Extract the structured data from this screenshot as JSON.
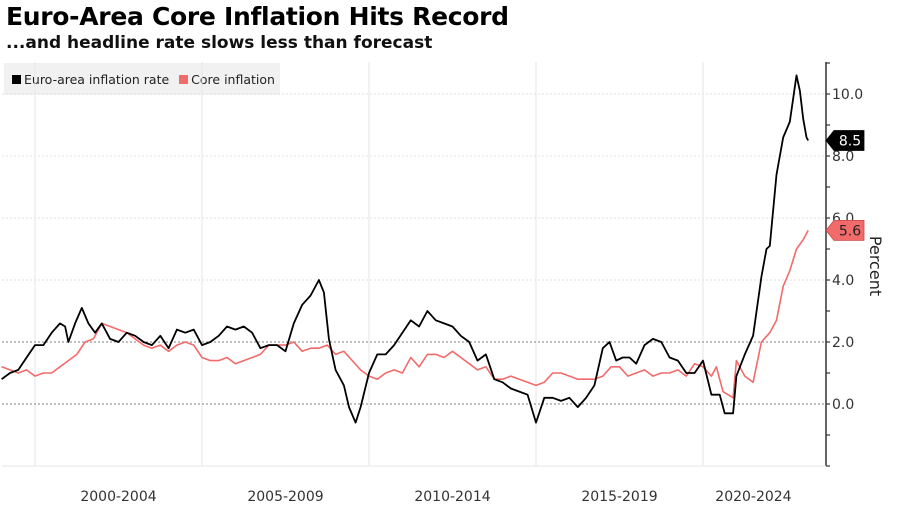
{
  "header": {
    "title": "Euro-Area Core Inflation Hits Record",
    "subtitle": "...and headline rate slows less than forecast"
  },
  "chart_data": {
    "type": "line",
    "title": "Euro-Area Core Inflation Hits Record",
    "subtitle": "...and headline rate slows less than forecast",
    "xlabel": "",
    "ylabel": "Percent",
    "ylim": [
      -2,
      11
    ],
    "yticks": [
      0.0,
      2.0,
      4.0,
      6.0,
      8.0,
      10.0
    ],
    "ytick_labels": [
      "0.0",
      "2.0",
      "4.0",
      "6.0",
      "8.0",
      "10.0"
    ],
    "xlim": [
      1999.0,
      2024.0
    ],
    "x_category_labels": [
      {
        "label": "2000-2004",
        "from": 2000,
        "to": 2005
      },
      {
        "label": "2005-2009",
        "from": 2005,
        "to": 2010
      },
      {
        "label": "2010-2014",
        "from": 2010,
        "to": 2015
      },
      {
        "label": "2015-2019",
        "from": 2015,
        "to": 2020
      },
      {
        "label": "2020-2024",
        "from": 2020,
        "to": 2024
      }
    ],
    "grid": true,
    "reference_lines": [
      0.0,
      2.0
    ],
    "legend_position": "top-left",
    "legend": [
      "Euro-area inflation rate",
      "Core inflation"
    ],
    "series": [
      {
        "name": "Euro-area inflation rate",
        "color": "#000000",
        "end_label": "8.5",
        "points": [
          [
            1999.0,
            0.8
          ],
          [
            1999.25,
            1.0
          ],
          [
            1999.5,
            1.1
          ],
          [
            1999.75,
            1.5
          ],
          [
            2000.0,
            1.9
          ],
          [
            2000.25,
            1.9
          ],
          [
            2000.5,
            2.3
          ],
          [
            2000.75,
            2.6
          ],
          [
            2000.9,
            2.5
          ],
          [
            2001.0,
            2.0
          ],
          [
            2001.2,
            2.6
          ],
          [
            2001.4,
            3.1
          ],
          [
            2001.6,
            2.6
          ],
          [
            2001.8,
            2.3
          ],
          [
            2002.0,
            2.6
          ],
          [
            2002.25,
            2.1
          ],
          [
            2002.5,
            2.0
          ],
          [
            2002.75,
            2.3
          ],
          [
            2003.0,
            2.2
          ],
          [
            2003.25,
            2.0
          ],
          [
            2003.5,
            1.9
          ],
          [
            2003.75,
            2.2
          ],
          [
            2004.0,
            1.8
          ],
          [
            2004.25,
            2.4
          ],
          [
            2004.5,
            2.3
          ],
          [
            2004.75,
            2.4
          ],
          [
            2005.0,
            1.9
          ],
          [
            2005.25,
            2.0
          ],
          [
            2005.5,
            2.2
          ],
          [
            2005.75,
            2.5
          ],
          [
            2006.0,
            2.4
          ],
          [
            2006.25,
            2.5
          ],
          [
            2006.5,
            2.3
          ],
          [
            2006.75,
            1.8
          ],
          [
            2007.0,
            1.9
          ],
          [
            2007.25,
            1.9
          ],
          [
            2007.5,
            1.7
          ],
          [
            2007.75,
            2.6
          ],
          [
            2008.0,
            3.2
          ],
          [
            2008.25,
            3.5
          ],
          [
            2008.5,
            4.0
          ],
          [
            2008.65,
            3.6
          ],
          [
            2008.8,
            2.1
          ],
          [
            2009.0,
            1.1
          ],
          [
            2009.25,
            0.6
          ],
          [
            2009.4,
            -0.1
          ],
          [
            2009.6,
            -0.6
          ],
          [
            2009.75,
            -0.1
          ],
          [
            2010.0,
            1.0
          ],
          [
            2010.25,
            1.6
          ],
          [
            2010.5,
            1.6
          ],
          [
            2010.75,
            1.9
          ],
          [
            2011.0,
            2.3
          ],
          [
            2011.25,
            2.7
          ],
          [
            2011.5,
            2.5
          ],
          [
            2011.75,
            3.0
          ],
          [
            2012.0,
            2.7
          ],
          [
            2012.25,
            2.6
          ],
          [
            2012.5,
            2.5
          ],
          [
            2012.75,
            2.2
          ],
          [
            2013.0,
            2.0
          ],
          [
            2013.25,
            1.4
          ],
          [
            2013.5,
            1.6
          ],
          [
            2013.75,
            0.8
          ],
          [
            2014.0,
            0.7
          ],
          [
            2014.25,
            0.5
          ],
          [
            2014.5,
            0.4
          ],
          [
            2014.75,
            0.3
          ],
          [
            2015.0,
            -0.6
          ],
          [
            2015.25,
            0.2
          ],
          [
            2015.5,
            0.2
          ],
          [
            2015.75,
            0.1
          ],
          [
            2016.0,
            0.2
          ],
          [
            2016.25,
            -0.1
          ],
          [
            2016.5,
            0.2
          ],
          [
            2016.75,
            0.6
          ],
          [
            2017.0,
            1.8
          ],
          [
            2017.2,
            2.0
          ],
          [
            2017.4,
            1.4
          ],
          [
            2017.6,
            1.5
          ],
          [
            2017.8,
            1.5
          ],
          [
            2018.0,
            1.3
          ],
          [
            2018.25,
            1.9
          ],
          [
            2018.5,
            2.1
          ],
          [
            2018.75,
            2.0
          ],
          [
            2019.0,
            1.5
          ],
          [
            2019.25,
            1.4
          ],
          [
            2019.5,
            1.0
          ],
          [
            2019.75,
            1.0
          ],
          [
            2020.0,
            1.4
          ],
          [
            2020.25,
            0.3
          ],
          [
            2020.5,
            0.3
          ],
          [
            2020.65,
            -0.3
          ],
          [
            2020.9,
            -0.3
          ],
          [
            2021.0,
            0.9
          ],
          [
            2021.25,
            1.6
          ],
          [
            2021.5,
            2.2
          ],
          [
            2021.75,
            4.1
          ],
          [
            2021.9,
            5.0
          ],
          [
            2022.0,
            5.1
          ],
          [
            2022.2,
            7.4
          ],
          [
            2022.4,
            8.6
          ],
          [
            2022.6,
            9.1
          ],
          [
            2022.8,
            10.6
          ],
          [
            2022.9,
            10.1
          ],
          [
            2023.0,
            9.2
          ],
          [
            2023.1,
            8.6
          ],
          [
            2023.15,
            8.5
          ]
        ]
      },
      {
        "name": "Core inflation",
        "color": "#f26b6b",
        "end_label": "5.6",
        "points": [
          [
            1999.0,
            1.2
          ],
          [
            1999.25,
            1.1
          ],
          [
            1999.5,
            1.0
          ],
          [
            1999.75,
            1.1
          ],
          [
            2000.0,
            0.9
          ],
          [
            2000.25,
            1.0
          ],
          [
            2000.5,
            1.0
          ],
          [
            2000.75,
            1.2
          ],
          [
            2001.0,
            1.4
          ],
          [
            2001.25,
            1.6
          ],
          [
            2001.5,
            2.0
          ],
          [
            2001.75,
            2.1
          ],
          [
            2002.0,
            2.6
          ],
          [
            2002.25,
            2.5
          ],
          [
            2002.5,
            2.4
          ],
          [
            2002.75,
            2.3
          ],
          [
            2003.0,
            2.1
          ],
          [
            2003.25,
            1.9
          ],
          [
            2003.5,
            1.8
          ],
          [
            2003.75,
            1.9
          ],
          [
            2004.0,
            1.7
          ],
          [
            2004.25,
            1.9
          ],
          [
            2004.5,
            2.0
          ],
          [
            2004.75,
            1.9
          ],
          [
            2005.0,
            1.5
          ],
          [
            2005.25,
            1.4
          ],
          [
            2005.5,
            1.4
          ],
          [
            2005.75,
            1.5
          ],
          [
            2006.0,
            1.3
          ],
          [
            2006.25,
            1.4
          ],
          [
            2006.5,
            1.5
          ],
          [
            2006.75,
            1.6
          ],
          [
            2007.0,
            1.9
          ],
          [
            2007.25,
            1.9
          ],
          [
            2007.5,
            1.9
          ],
          [
            2007.75,
            2.0
          ],
          [
            2008.0,
            1.7
          ],
          [
            2008.25,
            1.8
          ],
          [
            2008.5,
            1.8
          ],
          [
            2008.75,
            1.9
          ],
          [
            2009.0,
            1.6
          ],
          [
            2009.25,
            1.7
          ],
          [
            2009.5,
            1.4
          ],
          [
            2009.75,
            1.1
          ],
          [
            2010.0,
            0.9
          ],
          [
            2010.25,
            0.8
          ],
          [
            2010.5,
            1.0
          ],
          [
            2010.75,
            1.1
          ],
          [
            2011.0,
            1.0
          ],
          [
            2011.25,
            1.5
          ],
          [
            2011.5,
            1.2
          ],
          [
            2011.75,
            1.6
          ],
          [
            2012.0,
            1.6
          ],
          [
            2012.25,
            1.5
          ],
          [
            2012.5,
            1.7
          ],
          [
            2012.75,
            1.5
          ],
          [
            2013.0,
            1.3
          ],
          [
            2013.25,
            1.1
          ],
          [
            2013.5,
            1.2
          ],
          [
            2013.75,
            0.8
          ],
          [
            2014.0,
            0.8
          ],
          [
            2014.25,
            0.9
          ],
          [
            2014.5,
            0.8
          ],
          [
            2014.75,
            0.7
          ],
          [
            2015.0,
            0.6
          ],
          [
            2015.25,
            0.7
          ],
          [
            2015.5,
            1.0
          ],
          [
            2015.75,
            1.0
          ],
          [
            2016.0,
            0.9
          ],
          [
            2016.25,
            0.8
          ],
          [
            2016.5,
            0.8
          ],
          [
            2016.75,
            0.8
          ],
          [
            2017.0,
            0.9
          ],
          [
            2017.25,
            1.2
          ],
          [
            2017.5,
            1.2
          ],
          [
            2017.75,
            0.9
          ],
          [
            2018.0,
            1.0
          ],
          [
            2018.25,
            1.1
          ],
          [
            2018.5,
            0.9
          ],
          [
            2018.75,
            1.0
          ],
          [
            2019.0,
            1.0
          ],
          [
            2019.25,
            1.1
          ],
          [
            2019.5,
            0.9
          ],
          [
            2019.75,
            1.3
          ],
          [
            2020.0,
            1.2
          ],
          [
            2020.25,
            0.9
          ],
          [
            2020.4,
            1.2
          ],
          [
            2020.6,
            0.4
          ],
          [
            2020.9,
            0.2
          ],
          [
            2021.0,
            1.4
          ],
          [
            2021.25,
            0.9
          ],
          [
            2021.5,
            0.7
          ],
          [
            2021.75,
            2.0
          ],
          [
            2022.0,
            2.3
          ],
          [
            2022.2,
            2.7
          ],
          [
            2022.4,
            3.8
          ],
          [
            2022.6,
            4.3
          ],
          [
            2022.8,
            5.0
          ],
          [
            2023.0,
            5.3
          ],
          [
            2023.15,
            5.6
          ]
        ]
      }
    ]
  }
}
